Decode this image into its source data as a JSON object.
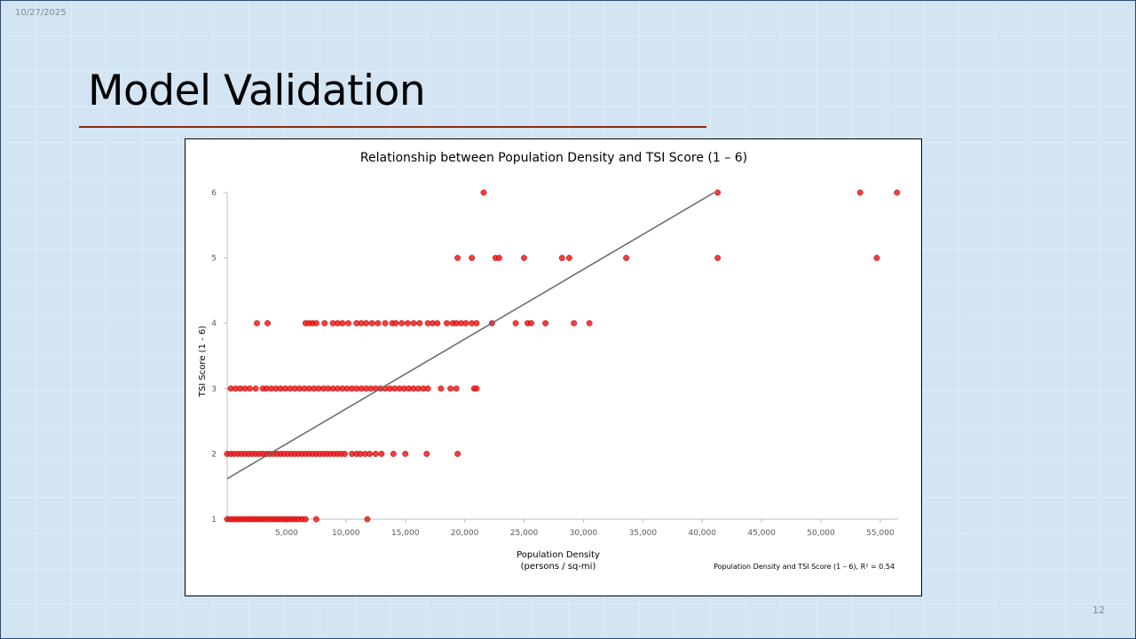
{
  "slide": {
    "date": "10/27/2025",
    "title": "Model Validation",
    "page_number": "12"
  },
  "colors": {
    "point": "#ee1c1c",
    "trendline": "#666666",
    "title_rule": "#8b2a16"
  },
  "chart_data": {
    "type": "scatter",
    "title": "Relationship between Population Density and TSI Score (1 – 6)",
    "xlabel": "Population Density",
    "xlabel_sub": "(persons / sq-mi)",
    "ylabel": "TSI Score (1 - 6)",
    "xlim": [
      0,
      56500
    ],
    "ylim": [
      1,
      6
    ],
    "x_ticks": [
      5000,
      10000,
      15000,
      20000,
      25000,
      30000,
      35000,
      40000,
      45000,
      50000,
      55000
    ],
    "x_tick_labels": [
      "5,000",
      "10,000",
      "15,000",
      "20,000",
      "25,000",
      "30,000",
      "35,000",
      "40,000",
      "45,000",
      "50,000",
      "55,000"
    ],
    "y_ticks": [
      1,
      2,
      3,
      4,
      5,
      6
    ],
    "y_tick_labels": [
      "1",
      "2",
      "3",
      "4",
      "5",
      "6"
    ],
    "trendline": {
      "x": [
        0,
        41000
      ],
      "y": [
        1.62,
        6.0
      ]
    },
    "annotation": "Population Density and TSI Score (1 – 6), R² = 0.54",
    "series": [
      {
        "name": "TSI Score",
        "points": [
          [
            0,
            1
          ],
          [
            250,
            1
          ],
          [
            500,
            1
          ],
          [
            750,
            1
          ],
          [
            1000,
            1
          ],
          [
            1250,
            1
          ],
          [
            1500,
            1
          ],
          [
            1750,
            1
          ],
          [
            2000,
            1
          ],
          [
            2250,
            1
          ],
          [
            2500,
            1
          ],
          [
            2750,
            1
          ],
          [
            3000,
            1
          ],
          [
            3250,
            1
          ],
          [
            3500,
            1
          ],
          [
            3750,
            1
          ],
          [
            4000,
            1
          ],
          [
            4250,
            1
          ],
          [
            4500,
            1
          ],
          [
            4750,
            1
          ],
          [
            5000,
            1
          ],
          [
            5250,
            1
          ],
          [
            5500,
            1
          ],
          [
            5750,
            1
          ],
          [
            6000,
            1
          ],
          [
            6300,
            1
          ],
          [
            6600,
            1
          ],
          [
            7500,
            1
          ],
          [
            11800,
            1
          ],
          [
            0,
            2
          ],
          [
            300,
            2
          ],
          [
            600,
            2
          ],
          [
            900,
            2
          ],
          [
            1200,
            2
          ],
          [
            1500,
            2
          ],
          [
            1800,
            2
          ],
          [
            2100,
            2
          ],
          [
            2400,
            2
          ],
          [
            2700,
            2
          ],
          [
            3000,
            2
          ],
          [
            3300,
            2
          ],
          [
            3600,
            2
          ],
          [
            3900,
            2
          ],
          [
            4200,
            2
          ],
          [
            4500,
            2
          ],
          [
            4800,
            2
          ],
          [
            5100,
            2
          ],
          [
            5400,
            2
          ],
          [
            5700,
            2
          ],
          [
            6000,
            2
          ],
          [
            6300,
            2
          ],
          [
            6600,
            2
          ],
          [
            6900,
            2
          ],
          [
            7200,
            2
          ],
          [
            7500,
            2
          ],
          [
            7800,
            2
          ],
          [
            8100,
            2
          ],
          [
            8400,
            2
          ],
          [
            8700,
            2
          ],
          [
            9000,
            2
          ],
          [
            9300,
            2
          ],
          [
            9600,
            2
          ],
          [
            9900,
            2
          ],
          [
            10500,
            2
          ],
          [
            10900,
            2
          ],
          [
            11200,
            2
          ],
          [
            11600,
            2
          ],
          [
            12000,
            2
          ],
          [
            12500,
            2
          ],
          [
            13000,
            2
          ],
          [
            14000,
            2
          ],
          [
            15000,
            2
          ],
          [
            16800,
            2
          ],
          [
            19400,
            2
          ],
          [
            300,
            3
          ],
          [
            700,
            3
          ],
          [
            1100,
            3
          ],
          [
            1500,
            3
          ],
          [
            1900,
            3
          ],
          [
            2400,
            3
          ],
          [
            3000,
            3
          ],
          [
            3300,
            3
          ],
          [
            3700,
            3
          ],
          [
            4100,
            3
          ],
          [
            4500,
            3
          ],
          [
            4900,
            3
          ],
          [
            5300,
            3
          ],
          [
            5700,
            3
          ],
          [
            6100,
            3
          ],
          [
            6500,
            3
          ],
          [
            6900,
            3
          ],
          [
            7300,
            3
          ],
          [
            7700,
            3
          ],
          [
            8100,
            3
          ],
          [
            8500,
            3
          ],
          [
            8900,
            3
          ],
          [
            9300,
            3
          ],
          [
            9700,
            3
          ],
          [
            10100,
            3
          ],
          [
            10500,
            3
          ],
          [
            10900,
            3
          ],
          [
            11300,
            3
          ],
          [
            11700,
            3
          ],
          [
            12100,
            3
          ],
          [
            12500,
            3
          ],
          [
            12900,
            3
          ],
          [
            13300,
            3
          ],
          [
            13700,
            3
          ],
          [
            14100,
            3
          ],
          [
            14500,
            3
          ],
          [
            14900,
            3
          ],
          [
            15300,
            3
          ],
          [
            15700,
            3
          ],
          [
            16100,
            3
          ],
          [
            16500,
            3
          ],
          [
            16900,
            3
          ],
          [
            18000,
            3
          ],
          [
            18800,
            3
          ],
          [
            19300,
            3
          ],
          [
            20800,
            3
          ],
          [
            21000,
            3
          ],
          [
            2500,
            4
          ],
          [
            3400,
            4
          ],
          [
            6600,
            4
          ],
          [
            6900,
            4
          ],
          [
            7200,
            4
          ],
          [
            7500,
            4
          ],
          [
            8200,
            4
          ],
          [
            8900,
            4
          ],
          [
            9300,
            4
          ],
          [
            9700,
            4
          ],
          [
            10200,
            4
          ],
          [
            10900,
            4
          ],
          [
            11300,
            4
          ],
          [
            11700,
            4
          ],
          [
            12200,
            4
          ],
          [
            12700,
            4
          ],
          [
            13300,
            4
          ],
          [
            13900,
            4
          ],
          [
            14200,
            4
          ],
          [
            14700,
            4
          ],
          [
            15200,
            4
          ],
          [
            15700,
            4
          ],
          [
            16200,
            4
          ],
          [
            16900,
            4
          ],
          [
            17300,
            4
          ],
          [
            17700,
            4
          ],
          [
            18500,
            4
          ],
          [
            19000,
            4
          ],
          [
            19300,
            4
          ],
          [
            19700,
            4
          ],
          [
            20100,
            4
          ],
          [
            20600,
            4
          ],
          [
            21000,
            4
          ],
          [
            22300,
            4
          ],
          [
            24300,
            4
          ],
          [
            25300,
            4
          ],
          [
            25600,
            4
          ],
          [
            26800,
            4
          ],
          [
            29200,
            4
          ],
          [
            30500,
            4
          ],
          [
            19400,
            5
          ],
          [
            20600,
            5
          ],
          [
            22600,
            5
          ],
          [
            22900,
            5
          ],
          [
            25000,
            5
          ],
          [
            28200,
            5
          ],
          [
            28800,
            5
          ],
          [
            33600,
            5
          ],
          [
            41300,
            5
          ],
          [
            54700,
            5
          ],
          [
            21600,
            6
          ],
          [
            41300,
            6
          ],
          [
            53300,
            6
          ],
          [
            56400,
            6
          ]
        ]
      }
    ]
  }
}
